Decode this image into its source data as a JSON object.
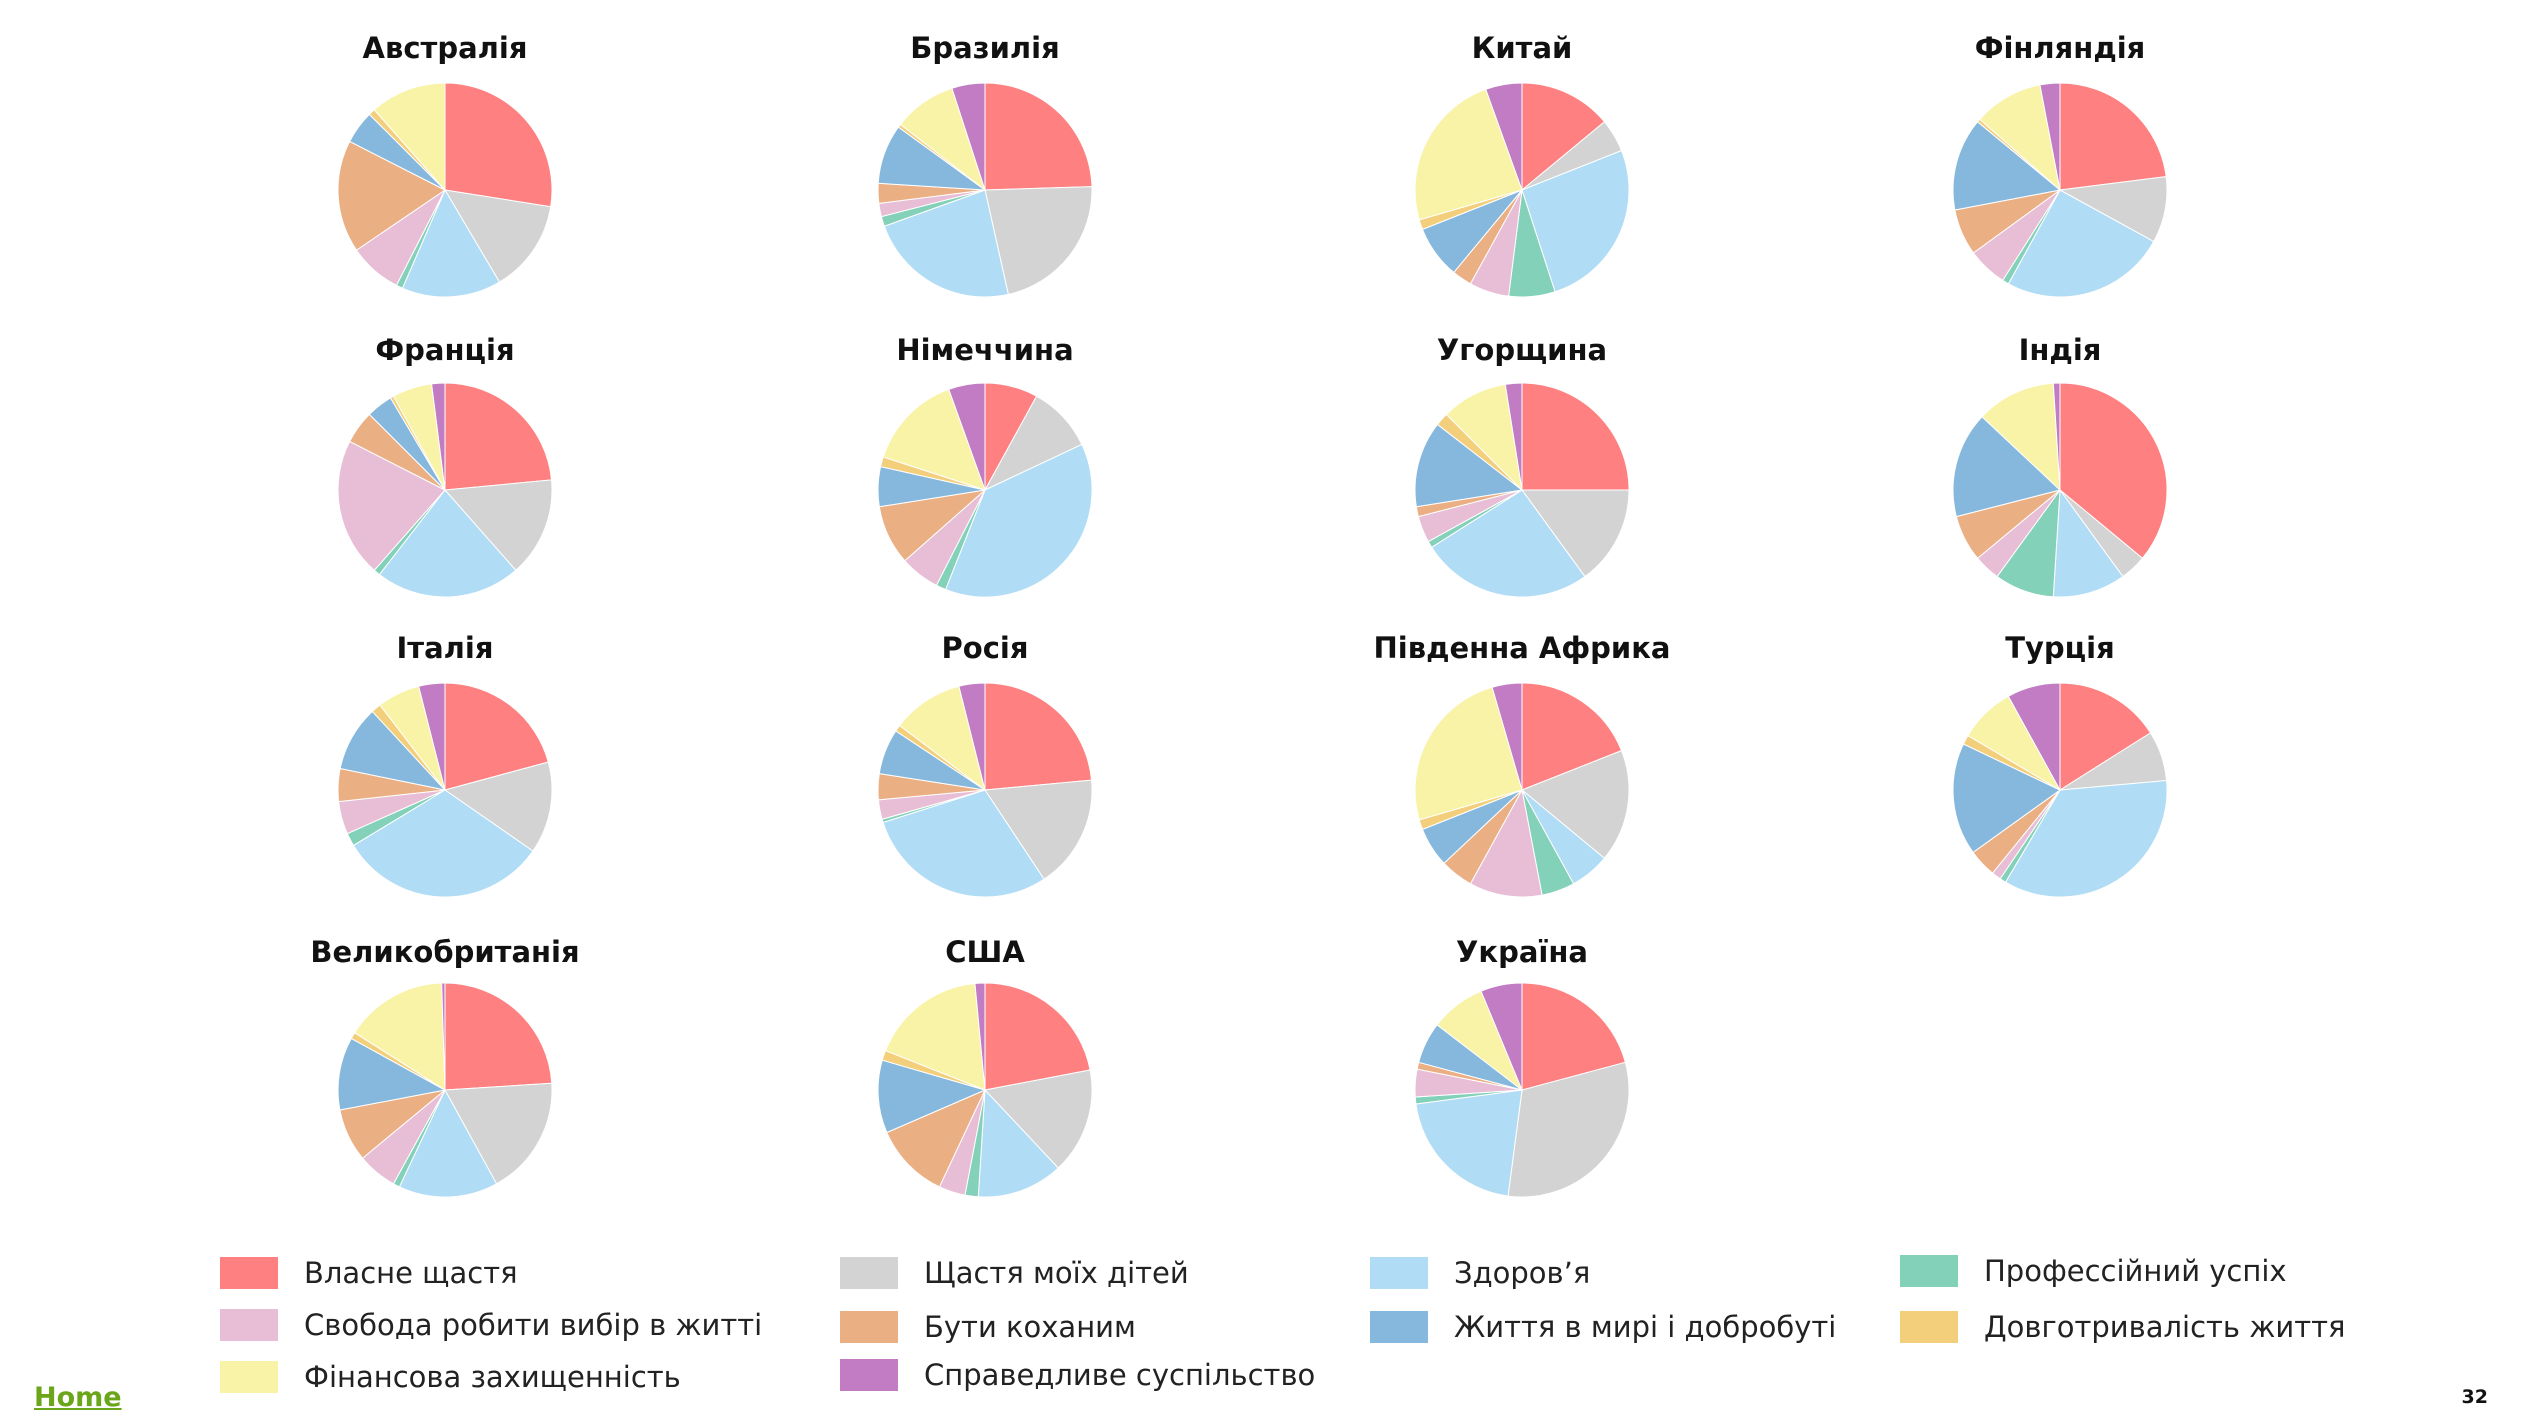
{
  "chart_data": {
    "type": "pie",
    "categories": [
      "Власне щастя",
      "Щастя моїх дітей",
      "Здоров’я",
      "Профессійний успіх",
      "Свобода робити вибір в житті",
      "Бути коханим",
      "Життя в мирі і добробуті",
      "Довготривалість життя",
      "Фінансова захищенність",
      "Справедливе суспільство"
    ],
    "colors": [
      "#fe8080",
      "#d3d3d3",
      "#b1dcf5",
      "#84d1b9",
      "#e8bdd6",
      "#ebaf84",
      "#86b8dd",
      "#f3cf7c",
      "#f8f3a6",
      "#c17cc3"
    ],
    "charts": [
      {
        "title": "Австралія",
        "values": [
          27.5,
          14,
          15,
          1,
          8,
          17,
          5,
          1,
          11.5,
          0
        ]
      },
      {
        "title": "Бразилія",
        "values": [
          24.5,
          22,
          23,
          1.5,
          2,
          3,
          9,
          0.5,
          9.5,
          5
        ]
      },
      {
        "title": "Китай",
        "values": [
          14,
          5,
          26,
          7,
          6,
          3,
          8,
          1.5,
          24,
          5.5
        ]
      },
      {
        "title": "Фінляндія",
        "values": [
          23,
          10,
          25,
          1,
          6,
          7,
          14,
          0.5,
          10.5,
          3
        ]
      },
      {
        "title": "Франція",
        "values": [
          23.5,
          15,
          22,
          1,
          21,
          5,
          4,
          0.5,
          6,
          2
        ]
      },
      {
        "title": "Німеччина",
        "values": [
          8,
          10,
          38,
          1.5,
          6,
          9,
          6,
          1.5,
          14.5,
          5.5
        ]
      },
      {
        "title": "Угорщина",
        "values": [
          25,
          15,
          26,
          1,
          4,
          1.5,
          13,
          2,
          10,
          2.5
        ]
      },
      {
        "title": "Індія",
        "values": [
          36,
          4,
          11,
          9,
          4,
          7,
          16,
          0,
          12,
          1
        ]
      },
      {
        "title": "Італія",
        "values": [
          21,
          14,
          32,
          2,
          5,
          5,
          10,
          1.5,
          6.5,
          4
        ]
      },
      {
        "title": "Росія",
        "values": [
          24,
          17.5,
          30,
          0.5,
          3,
          4,
          7,
          1,
          11,
          4
        ]
      },
      {
        "title": "Південна Африка",
        "values": [
          19,
          17,
          6,
          5,
          11,
          5,
          6,
          1.5,
          25,
          4.5
        ]
      },
      {
        "title": "Турція",
        "values": [
          17,
          8,
          37,
          1,
          1.5,
          4.5,
          18,
          1.5,
          9,
          8.5
        ]
      },
      {
        "title": "Великобританія",
        "values": [
          24,
          18,
          15,
          1,
          6,
          8,
          11,
          1,
          15.5,
          0.5
        ]
      },
      {
        "title": "США",
        "values": [
          22,
          16,
          13,
          2,
          4,
          11.5,
          11,
          1.5,
          17.5,
          1.5
        ]
      },
      {
        "title": "Україна",
        "values": [
          20,
          30,
          20,
          1,
          4,
          1,
          6,
          0,
          8,
          6
        ]
      }
    ],
    "legend": [
      {
        "label": "Власне щастя",
        "color": "#fe8080"
      },
      {
        "label": "Щастя моїх дітей",
        "color": "#d3d3d3"
      },
      {
        "label": "Здоров’я",
        "color": "#b1dcf5"
      },
      {
        "label": "Профессійний успіх",
        "color": "#84d1b9"
      },
      {
        "label": "Свобода робити вибір в житті",
        "color": "#e8bdd6"
      },
      {
        "label": "Бути коханим",
        "color": "#ebaf84"
      },
      {
        "label": "Життя в мирі і добробуті",
        "color": "#86b8dd"
      },
      {
        "label": "Довготривалість життя",
        "color": "#f3cf7c"
      },
      {
        "label": "Фінансова захищенність",
        "color": "#f8f3a6"
      },
      {
        "label": "Справедливе суспільство",
        "color": "#c17cc3"
      }
    ],
    "legend_placement": "bottom",
    "start_angle": "top, clockwise"
  },
  "footer": {
    "home_label": "Home",
    "page_number": "32"
  }
}
